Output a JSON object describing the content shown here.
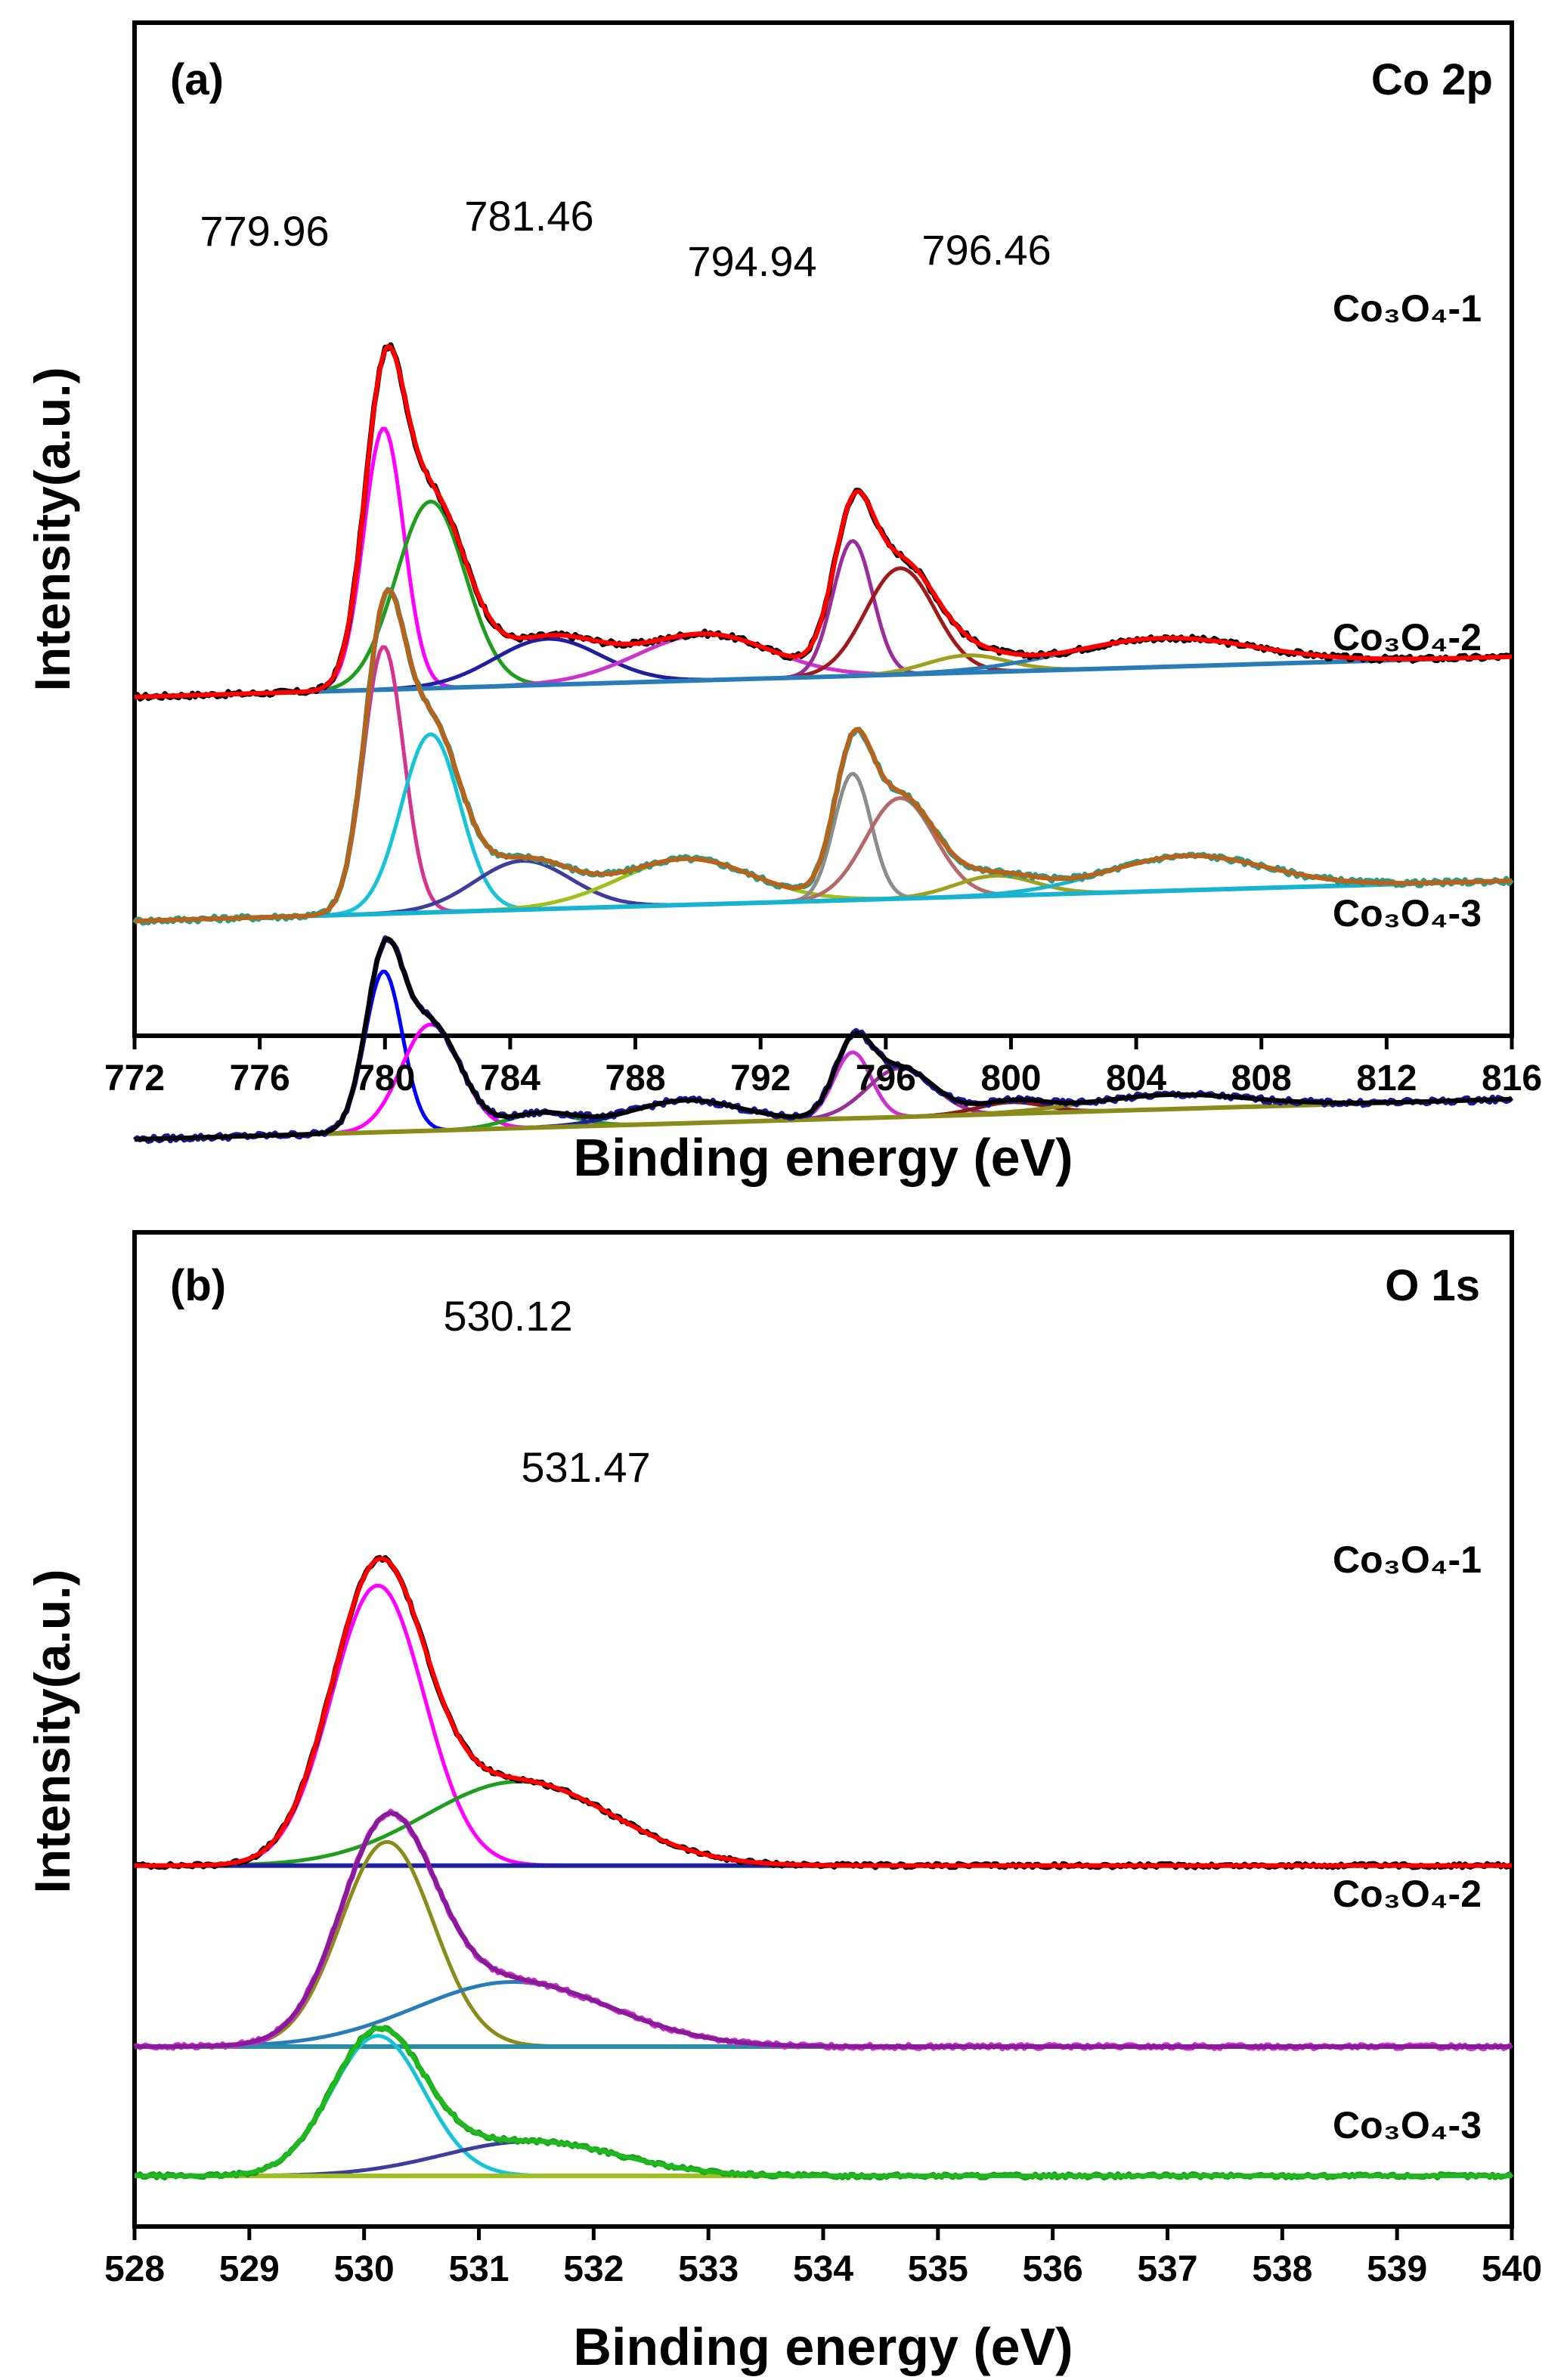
{
  "chart_data": [
    {
      "type": "line",
      "panel": "(a)",
      "core_level": "Co 2p",
      "xlabel": "Binding energy (eV)",
      "ylabel": "Intensity(a.u.)",
      "xlim": [
        772,
        816
      ],
      "xticks": [
        772,
        776,
        780,
        784,
        788,
        792,
        796,
        800,
        804,
        808,
        812,
        816
      ],
      "peak_labels": [
        {
          "text": "779.96",
          "x": 779.96
        },
        {
          "text": "781.46",
          "x": 781.46
        },
        {
          "text": "794.94",
          "x": 794.94
        },
        {
          "text": "796.46",
          "x": 796.46
        }
      ],
      "baseline_slope": 0.35,
      "traces": [
        {
          "label": "Co₃O₄-1",
          "offset": 8.9,
          "baseline_start": 0,
          "envelope_color": "#ff0000",
          "raw_color": "#000000",
          "background_color": "#2a7cb8",
          "components": [
            {
              "center": 779.96,
              "height": 9.1,
              "fwhm": 1.5,
              "color": "#ff00ff"
            },
            {
              "center": 781.46,
              "height": 6.5,
              "fwhm": 2.6,
              "color": "#1f9d1f"
            },
            {
              "center": 785.2,
              "height": 1.6,
              "fwhm": 4.0,
              "color": "#1f1f9f"
            },
            {
              "center": 790.2,
              "height": 1.6,
              "fwhm": 5.0,
              "color": "#cc33cc"
            },
            {
              "center": 794.94,
              "height": 4.7,
              "fwhm": 1.5,
              "color": "#9b2d9b"
            },
            {
              "center": 796.46,
              "height": 3.7,
              "fwhm": 2.6,
              "color": "#a01a1a"
            },
            {
              "center": 798.6,
              "height": 0.6,
              "fwhm": 3.0,
              "color": "#a0a020"
            },
            {
              "center": 804.8,
              "height": 1.0,
              "fwhm": 7.0,
              "color": "#2a7cb8"
            }
          ]
        },
        {
          "label": "Co₃O₄-2",
          "offset": 1.1,
          "baseline_start": 0,
          "envelope_color": "#b8621a",
          "raw_color": "#2a9d8a",
          "background_color": "#17b3d1",
          "components": [
            {
              "center": 779.96,
              "height": 9.3,
              "fwhm": 1.5,
              "color": "#d6338f"
            },
            {
              "center": 781.46,
              "height": 6.2,
              "fwhm": 2.2,
              "color": "#17c3d6"
            },
            {
              "center": 784.4,
              "height": 1.7,
              "fwhm": 3.6,
              "color": "#3d3d9e"
            },
            {
              "center": 789.6,
              "height": 1.6,
              "fwhm": 5.0,
              "color": "#9ec01a"
            },
            {
              "center": 794.94,
              "height": 4.4,
              "fwhm": 1.4,
              "color": "#8c8c8c"
            },
            {
              "center": 796.46,
              "height": 3.5,
              "fwhm": 2.6,
              "color": "#b56a6a"
            },
            {
              "center": 799.5,
              "height": 0.7,
              "fwhm": 3.0,
              "color": "#a0a020"
            },
            {
              "center": 805.6,
              "height": 1.2,
              "fwhm": 6.0,
              "color": "#17b3d1"
            }
          ]
        },
        {
          "label": "Co₃O₄-3",
          "offset": -6.5,
          "baseline_start": 0,
          "envelope_color": "#000000",
          "raw_color": "#1a1a9f",
          "background_color": "#8b8b1a",
          "components": [
            {
              "center": 779.96,
              "height": 5.6,
              "fwhm": 1.4,
              "color": "#0000ff"
            },
            {
              "center": 781.46,
              "height": 3.7,
              "fwhm": 2.2,
              "color": "#ff00ff"
            },
            {
              "center": 785.0,
              "height": 0.5,
              "fwhm": 2.5,
              "color": "#1f9d1f"
            },
            {
              "center": 789.6,
              "height": 0.8,
              "fwhm": 4.0,
              "color": "#1f1f9f"
            },
            {
              "center": 794.94,
              "height": 2.3,
              "fwhm": 1.4,
              "color": "#cc33cc"
            },
            {
              "center": 796.46,
              "height": 1.7,
              "fwhm": 2.5,
              "color": "#9b2d9b"
            },
            {
              "center": 800.0,
              "height": 0.4,
              "fwhm": 2.5,
              "color": "#8b1a1a"
            },
            {
              "center": 805.0,
              "height": 0.5,
              "fwhm": 6.0,
              "color": "#8b8b1a"
            }
          ]
        }
      ]
    },
    {
      "type": "line",
      "panel": "(b)",
      "core_level": "O 1s",
      "xlabel": "Binding energy (eV)",
      "ylabel": "Intensity(a.u.)",
      "xlim": [
        528,
        540
      ],
      "xticks": [
        528,
        529,
        530,
        531,
        532,
        533,
        534,
        535,
        536,
        537,
        538,
        539,
        540
      ],
      "peak_labels": [
        {
          "text": "530.12",
          "x": 530.12
        },
        {
          "text": "531.47",
          "x": 531.47
        }
      ],
      "baseline_slope": 0.0,
      "traces": [
        {
          "label": "Co₃O₄-1",
          "offset": 14.4,
          "envelope_color": "#ff0000",
          "raw_color": "#000000",
          "background_color": "#1f1f9f",
          "components": [
            {
              "center": 530.12,
              "height": 13.0,
              "fwhm": 0.95,
              "color": "#ff00ff"
            },
            {
              "center": 531.35,
              "height": 3.9,
              "fwhm": 1.9,
              "color": "#1f9d1f"
            }
          ]
        },
        {
          "label": "Co₃O₄-2",
          "offset": 6.0,
          "envelope_color": "#8b1a9b",
          "raw_color": "#cc33cc",
          "background_color": "#2a8ca6",
          "components": [
            {
              "center": 530.2,
              "height": 9.5,
              "fwhm": 0.95,
              "color": "#8b8b1a"
            },
            {
              "center": 531.3,
              "height": 3.0,
              "fwhm": 2.0,
              "color": "#2a7cb8"
            }
          ]
        },
        {
          "label": "Co₃O₄-3",
          "offset": 0.0,
          "envelope_color": "#1fb81f",
          "raw_color": "#1f9d1f",
          "background_color": "#9ec01a",
          "components": [
            {
              "center": 530.12,
              "height": 6.5,
              "fwhm": 0.95,
              "color": "#17c3d6"
            },
            {
              "center": 531.45,
              "height": 1.6,
              "fwhm": 1.8,
              "color": "#3d3d9e"
            }
          ]
        }
      ]
    }
  ]
}
